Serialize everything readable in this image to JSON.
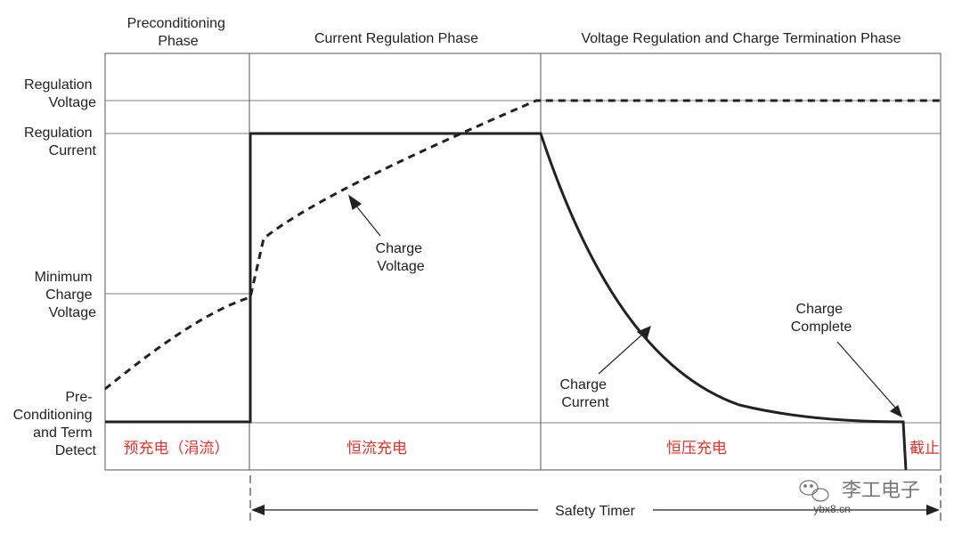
{
  "diagram": {
    "phases": {
      "preconditioning": [
        "Preconditioning",
        "Phase"
      ],
      "current_regulation": "Current Regulation Phase",
      "voltage_regulation": "Voltage Regulation and Charge Termination Phase"
    },
    "y_labels": {
      "regulation_voltage": [
        "Regulation",
        "Voltage"
      ],
      "regulation_current": [
        "Regulation",
        "Current"
      ],
      "minimum_charge_voltage": [
        "Minimum",
        "Charge",
        "Voltage"
      ],
      "preconditioning_detect": [
        "Pre-",
        "Conditioning",
        "and Term",
        "Detect"
      ]
    },
    "annotations": {
      "charge_voltage": [
        "Charge",
        "Voltage"
      ],
      "charge_current": [
        "Charge",
        "Current"
      ],
      "charge_complete": [
        "Charge",
        "Complete"
      ]
    },
    "cn_labels": {
      "trickle": "预充电（涓流）",
      "constant_current": "恒流充电",
      "constant_voltage": "恒压充电",
      "cutoff": "截止"
    },
    "safety_timer": "Safety Timer",
    "watermark": {
      "name": "李工电子",
      "url": "ybx8.cn"
    },
    "colors": {
      "line": "#222222",
      "grid": "#555555",
      "cn_text": "#e8312a",
      "watermark": "#777777"
    }
  }
}
